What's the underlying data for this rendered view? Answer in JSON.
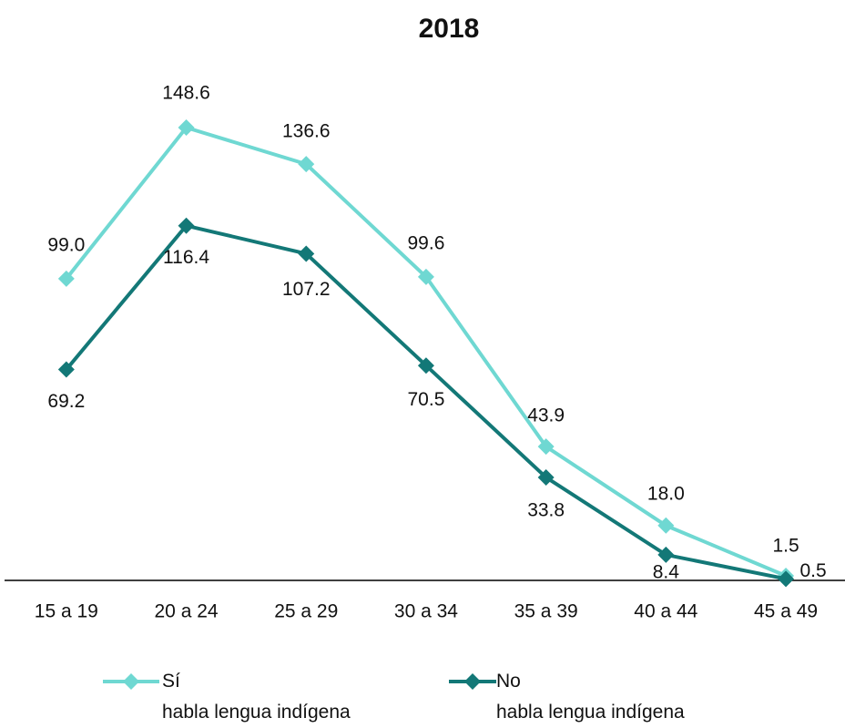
{
  "chart_data": {
    "type": "line",
    "title": "2018",
    "categories": [
      "15 a 19",
      "20 a 24",
      "25 a 29",
      "30 a 34",
      "35 a 39",
      "40 a 44",
      "45 a 49"
    ],
    "series": [
      {
        "name": "Sí\nhabla lengua indígena",
        "color": "#6fd8d2",
        "values": [
          99.0,
          148.6,
          136.6,
          99.6,
          43.9,
          18.0,
          1.5
        ],
        "value_labels": [
          "99.0",
          "148.6",
          "136.6",
          "99.6",
          "43.9",
          "18.0",
          "1.5"
        ]
      },
      {
        "name": "No\nhabla lengua indígena",
        "color": "#137877",
        "values": [
          69.2,
          116.4,
          107.2,
          70.5,
          33.8,
          8.4,
          0.5
        ],
        "value_labels": [
          "69.2",
          "116.4",
          "107.2",
          "70.5",
          "33.8",
          "8.4",
          "0.5"
        ]
      }
    ]
  }
}
